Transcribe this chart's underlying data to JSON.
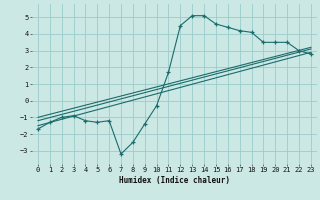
{
  "xlabel": "Humidex (Indice chaleur)",
  "bg_color": "#cce8e5",
  "grid_color": "#99ccca",
  "line_color": "#1a6b6b",
  "xlim": [
    -0.5,
    23.5
  ],
  "ylim": [
    -3.8,
    5.8
  ],
  "xticks": [
    0,
    1,
    2,
    3,
    4,
    5,
    6,
    7,
    8,
    9,
    10,
    11,
    12,
    13,
    14,
    15,
    16,
    17,
    18,
    19,
    20,
    21,
    22,
    23
  ],
  "yticks": [
    -3,
    -2,
    -1,
    0,
    1,
    2,
    3,
    4,
    5
  ],
  "curve1_x": [
    0,
    1,
    2,
    3,
    4,
    5,
    6,
    7,
    8,
    9,
    10,
    11,
    12,
    13,
    14,
    15,
    16,
    17,
    18,
    19,
    20,
    21,
    22,
    23
  ],
  "curve1_y": [
    -1.7,
    -1.3,
    -1.0,
    -0.9,
    -1.2,
    -1.3,
    -1.2,
    -3.2,
    -2.5,
    -1.4,
    -0.3,
    1.7,
    4.5,
    5.1,
    5.1,
    4.6,
    4.4,
    4.2,
    4.1,
    3.5,
    3.5,
    3.5,
    3.0,
    2.8
  ],
  "line2_x": [
    0,
    23
  ],
  "line2_y": [
    -1.5,
    2.9
  ],
  "line3_x": [
    0,
    23
  ],
  "line3_y": [
    -1.2,
    3.1
  ],
  "line4_x": [
    0,
    23
  ],
  "line4_y": [
    -1.0,
    3.2
  ]
}
